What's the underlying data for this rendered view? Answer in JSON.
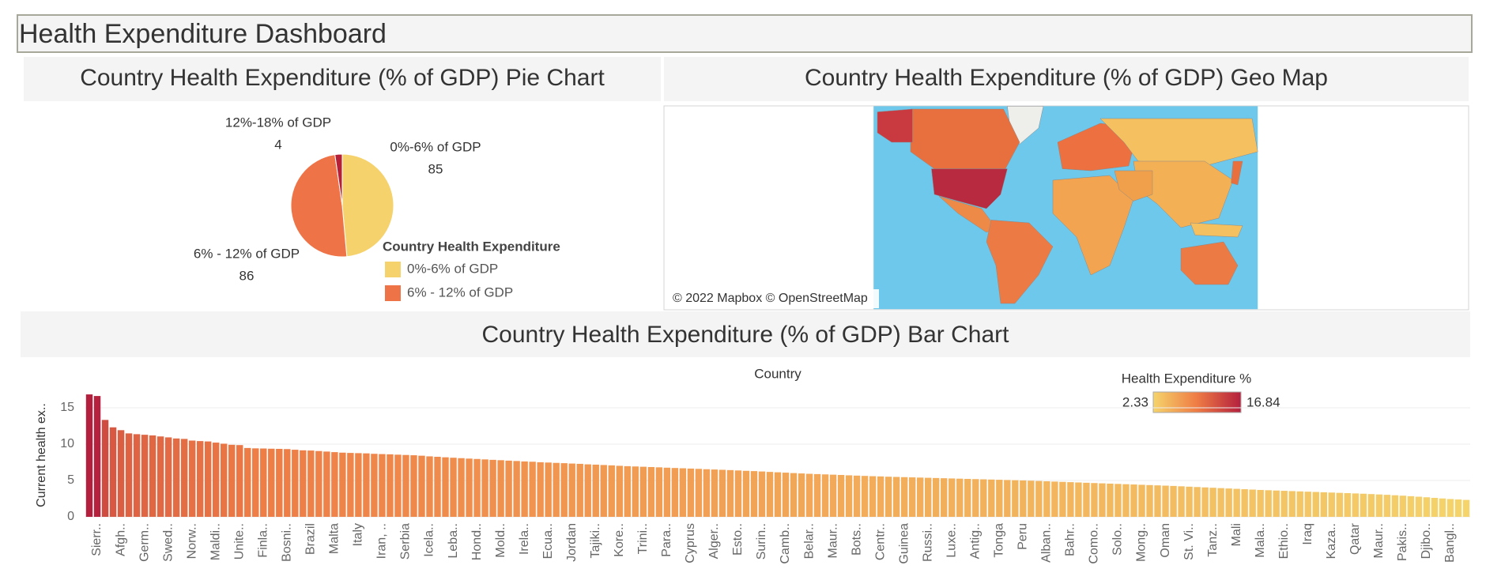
{
  "dashboard_title": "Health Expenditure Dashboard",
  "map": {
    "title": "Country Health Expenditure (% of GDP) Geo Map",
    "attribution": "© 2022 Mapbox © OpenStreetMap"
  },
  "chart_data": [
    {
      "type": "pie",
      "title": "Country Health Expenditure (% of GDP) Pie Chart",
      "legend_title": "Country Health Expenditure",
      "categories": [
        "0%-6% of GDP",
        "6% - 12% of GDP",
        "12%-18% of GDP"
      ],
      "values": [
        85,
        86,
        4
      ],
      "colors": [
        "#f5d26b",
        "#ee7448",
        "#b52038"
      ]
    },
    {
      "type": "bar",
      "title": "Country Health Expenditure (% of GDP) Bar Chart",
      "x_label": "Country",
      "y_label": "Current health ex..",
      "categories": [
        null,
        "Sierr..",
        null,
        null,
        "Afgh..",
        null,
        null,
        "Germ..",
        null,
        null,
        "Swed..",
        null,
        null,
        "Norw..",
        null,
        null,
        "Maldi..",
        null,
        null,
        "Unite..",
        null,
        null,
        "Finla..",
        null,
        null,
        "Bosni..",
        null,
        null,
        "Brazil",
        null,
        null,
        "Malta",
        null,
        null,
        "Italy",
        null,
        null,
        "Iran, ..",
        null,
        null,
        "Serbia",
        null,
        null,
        "Icela..",
        null,
        null,
        "Leba..",
        null,
        null,
        "Hond..",
        null,
        null,
        "Mold..",
        null,
        null,
        "Irela..",
        null,
        null,
        "Ecua..",
        null,
        null,
        "Jordan",
        null,
        null,
        "Tajiki..",
        null,
        null,
        "Kore..",
        null,
        null,
        "Trini..",
        null,
        null,
        "Para..",
        null,
        null,
        "Cyprus",
        null,
        null,
        "Alger..",
        null,
        null,
        "Esto..",
        null,
        null,
        "Surin..",
        null,
        null,
        "Camb..",
        null,
        null,
        "Belar..",
        null,
        null,
        "Maur..",
        null,
        null,
        "Bots..",
        null,
        null,
        "Centr..",
        null,
        null,
        "Guinea",
        null,
        null,
        "Russi..",
        null,
        null,
        "Luxe..",
        null,
        null,
        "Antig..",
        null,
        null,
        "Tonga",
        null,
        null,
        "Peru",
        null,
        null,
        "Alban..",
        null,
        null,
        "Bahr..",
        null,
        null,
        "Como..",
        null,
        null,
        "Solo..",
        null,
        null,
        "Mong..",
        null,
        null,
        "Oman",
        null,
        null,
        "St. Vi..",
        null,
        null,
        "Tanz..",
        null,
        null,
        "Mali",
        null,
        null,
        "Mala..",
        null,
        null,
        "Ethio..",
        null,
        null,
        "Iraq",
        null,
        null,
        "Kaza..",
        null,
        null,
        "Qatar",
        null,
        null,
        "Maur..",
        null,
        null,
        "Pakis..",
        null,
        null,
        "Djibo..",
        null,
        null,
        "Bangl..",
        null,
        null
      ],
      "values": [
        16.84,
        16.62,
        13.33,
        12.31,
        11.92,
        11.48,
        11.37,
        11.29,
        11.2,
        11.06,
        10.93,
        10.78,
        10.72,
        10.49,
        10.42,
        10.37,
        10.21,
        10.06,
        9.91,
        9.87,
        9.47,
        9.42,
        9.4,
        9.37,
        9.35,
        9.32,
        9.23,
        9.15,
        9.12,
        9.05,
        8.98,
        8.9,
        8.83,
        8.79,
        8.76,
        8.73,
        8.67,
        8.63,
        8.6,
        8.55,
        8.51,
        8.47,
        8.41,
        8.32,
        8.26,
        8.19,
        8.13,
        8.07,
        8.01,
        7.96,
        7.9,
        7.84,
        7.79,
        7.73,
        7.68,
        7.62,
        7.58,
        7.51,
        7.47,
        7.42,
        7.38,
        7.33,
        7.29,
        7.22,
        7.18,
        7.13,
        7.08,
        7.02,
        6.97,
        6.93,
        6.89,
        6.85,
        6.81,
        6.76,
        6.72,
        6.68,
        6.64,
        6.6,
        6.55,
        6.51,
        6.47,
        6.43,
        6.38,
        6.33,
        6.29,
        6.24,
        6.18,
        6.13,
        6.08,
        6.02,
        5.97,
        5.92,
        5.88,
        5.84,
        5.8,
        5.76,
        5.71,
        5.67,
        5.63,
        5.59,
        5.56,
        5.52,
        5.49,
        5.46,
        5.43,
        5.4,
        5.37,
        5.34,
        5.31,
        5.28,
        5.25,
        5.22,
        5.19,
        5.16,
        5.13,
        5.1,
        5.07,
        5.04,
        5.01,
        4.97,
        4.93,
        4.89,
        4.85,
        4.81,
        4.77,
        4.73,
        4.69,
        4.65,
        4.61,
        4.57,
        4.53,
        4.49,
        4.45,
        4.41,
        4.37,
        4.33,
        4.29,
        4.25,
        4.2,
        4.15,
        4.1,
        4.05,
        4.0,
        3.95,
        3.9,
        3.85,
        3.8,
        3.75,
        3.7,
        3.66,
        3.62,
        3.58,
        3.54,
        3.5,
        3.46,
        3.42,
        3.38,
        3.34,
        3.3,
        3.26,
        3.22,
        3.18,
        3.13,
        3.08,
        3.03,
        2.97,
        2.91,
        2.84,
        2.77,
        2.69,
        2.61,
        2.53,
        2.45,
        2.39,
        2.33
      ],
      "ylim": [
        0,
        18
      ],
      "yticks": [
        0,
        5,
        10,
        15
      ],
      "grid": true,
      "color_scale": {
        "title": "Health Expenditure %",
        "range": [
          2.33,
          16.84
        ],
        "colors": [
          "#f5d46b",
          "#ee7b45",
          "#b41f3d"
        ]
      }
    }
  ]
}
